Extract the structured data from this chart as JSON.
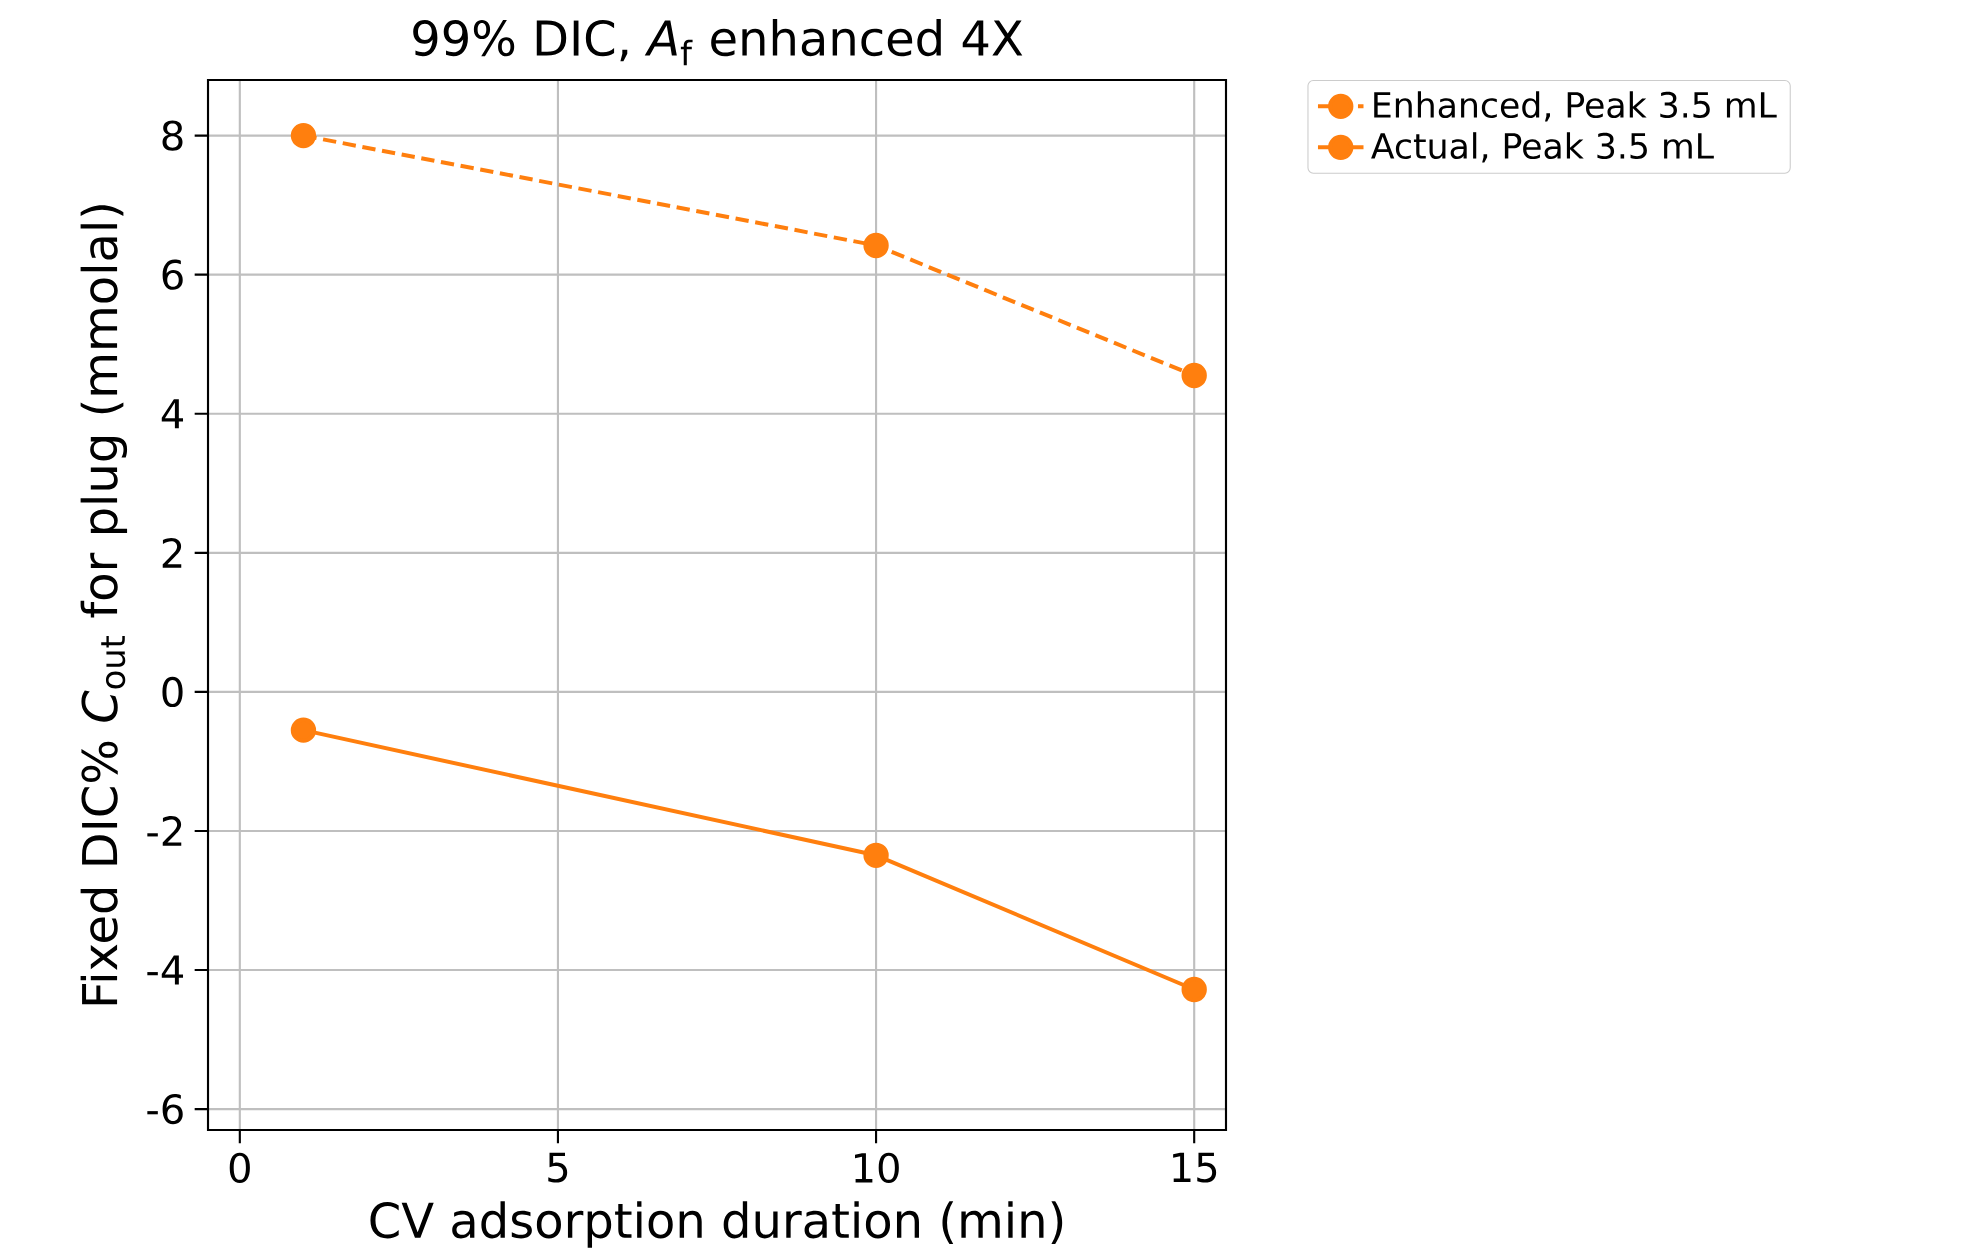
{
  "chart_data": {
    "type": "line",
    "title": "99% DIC, *A*$_{f}$ enhanced 4X",
    "xlabel": "CV adsorption duration (min)",
    "ylabel": "Fixed DIC% *C*$_{out}$ for plug (mmolal)",
    "x": [
      1,
      10,
      15
    ],
    "series": [
      {
        "name": "Enhanced, Peak 3.5 mL",
        "color": "#ff7f0e",
        "values": [
          8.0,
          6.42,
          4.55
        ],
        "line_style": "dashed"
      },
      {
        "name": "Actual, Peak 3.5 mL",
        "color": "#ff7f0e",
        "values": [
          -0.55,
          -2.35,
          -4.28
        ],
        "line_style": "solid"
      }
    ],
    "xlim": [
      -0.5,
      15.5
    ],
    "ylim": [
      -6.3,
      8.8
    ],
    "xticks": [
      0,
      5,
      10,
      15
    ],
    "yticks": [
      -6,
      -4,
      -2,
      0,
      2,
      4,
      6,
      8
    ],
    "grid": true,
    "legend": "top right",
    "marker": "circle"
  }
}
